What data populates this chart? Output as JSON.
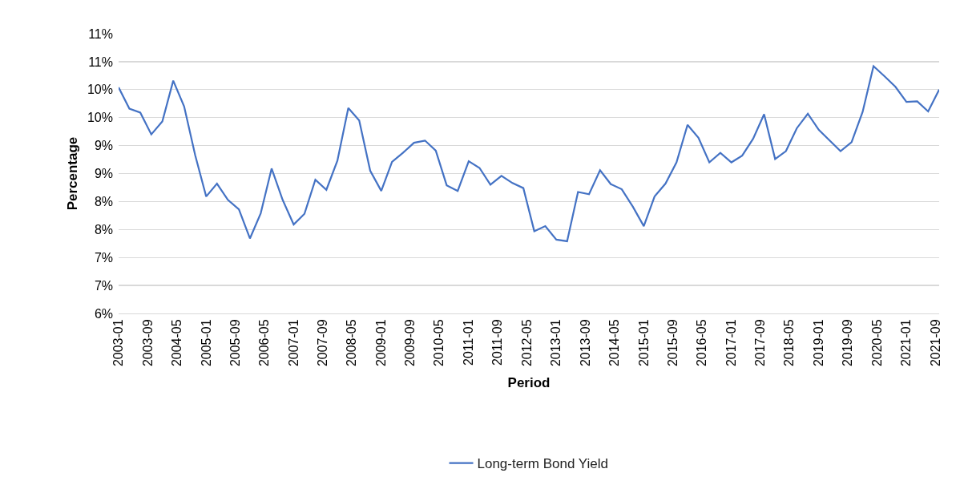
{
  "chart_data": {
    "type": "line",
    "xlabel": "Period",
    "ylabel": "Percentage",
    "legend": "bottom",
    "grid": "y",
    "marker": "none",
    "line_style": "solid",
    "x": [
      "2003-01",
      "2003-04",
      "2003-07",
      "2003-10",
      "2004-01",
      "2004-04",
      "2004-07",
      "2004-10",
      "2005-01",
      "2005-04",
      "2005-07",
      "2005-10",
      "2006-01",
      "2006-04",
      "2006-07",
      "2006-10",
      "2007-01",
      "2007-04",
      "2007-07",
      "2007-10",
      "2008-01",
      "2008-04",
      "2008-07",
      "2008-10",
      "2009-01",
      "2009-04",
      "2009-07",
      "2009-10",
      "2010-01",
      "2010-04",
      "2010-07",
      "2010-10",
      "2011-01",
      "2011-04",
      "2011-07",
      "2011-10",
      "2012-01",
      "2012-04",
      "2012-07",
      "2012-10",
      "2013-01",
      "2013-04",
      "2013-07",
      "2013-10",
      "2014-01",
      "2014-04",
      "2014-07",
      "2014-10",
      "2015-01",
      "2015-04",
      "2015-07",
      "2015-10",
      "2016-01",
      "2016-04",
      "2016-07",
      "2016-10",
      "2017-01",
      "2017-04",
      "2017-07",
      "2017-10",
      "2018-01",
      "2018-04",
      "2018-07",
      "2018-10",
      "2019-01",
      "2019-04",
      "2019-07",
      "2019-10",
      "2020-01",
      "2020-04",
      "2020-07",
      "2020-10",
      "2021-01",
      "2021-04",
      "2021-07",
      "2021-10"
    ],
    "series": [
      {
        "name": "Long-term Bond Yield",
        "color": "#4472c4",
        "values": [
          10.04,
          9.66,
          9.59,
          9.2,
          9.43,
          10.16,
          9.7,
          8.83,
          8.09,
          8.32,
          8.03,
          7.86,
          7.34,
          7.79,
          8.59,
          8.03,
          7.59,
          7.78,
          8.39,
          8.21,
          8.73,
          9.67,
          9.45,
          8.55,
          8.19,
          8.71,
          8.87,
          9.05,
          9.09,
          8.91,
          8.29,
          8.19,
          8.72,
          8.6,
          8.3,
          8.46,
          8.33,
          8.24,
          7.47,
          7.56,
          7.32,
          7.29,
          8.17,
          8.13,
          8.56,
          8.31,
          8.22,
          7.91,
          7.56,
          8.09,
          8.32,
          8.7,
          9.37,
          9.14,
          8.7,
          8.87,
          8.7,
          8.82,
          9.12,
          9.56,
          8.76,
          8.9,
          9.31,
          9.57,
          9.28,
          9.09,
          8.9,
          9.06,
          9.6,
          10.42,
          10.24,
          10.05,
          9.78,
          9.79,
          9.61,
          10.0
        ]
      }
    ],
    "xlim": [
      "2003-01",
      "2021-10"
    ],
    "xticks": [
      "2003-01",
      "2003-09",
      "2004-05",
      "2005-01",
      "2005-09",
      "2006-05",
      "2007-01",
      "2007-09",
      "2008-05",
      "2009-01",
      "2009-09",
      "2010-05",
      "2011-01",
      "2011-09",
      "2012-05",
      "2013-01",
      "2013-09",
      "2014-05",
      "2015-01",
      "2015-09",
      "2016-05",
      "2017-01",
      "2017-09",
      "2018-05",
      "2019-01",
      "2019-09",
      "2020-05",
      "2021-01",
      "2021-09"
    ],
    "ylim": [
      6,
      11
    ],
    "yticks": [
      {
        "value": 6,
        "label": "6%"
      },
      {
        "value": 6.5,
        "label": "7%"
      },
      {
        "value": 7,
        "label": "7%"
      },
      {
        "value": 7.5,
        "label": "8%"
      },
      {
        "value": 8,
        "label": "8%"
      },
      {
        "value": 8.5,
        "label": "9%"
      },
      {
        "value": 9,
        "label": "9%"
      },
      {
        "value": 9.5,
        "label": "10%"
      },
      {
        "value": 10,
        "label": "10%"
      },
      {
        "value": 10.5,
        "label": "11%"
      },
      {
        "value": 11,
        "label": "11%"
      }
    ]
  }
}
